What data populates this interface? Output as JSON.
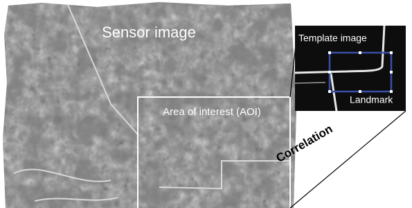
{
  "sensor_image": {
    "label": "Sensor image"
  },
  "area_of_interest": {
    "label": "Area of interest (AOI)"
  },
  "template_image": {
    "label": "Template image",
    "landmark_label": "Landmark"
  },
  "relation": {
    "label": "Correlation"
  }
}
